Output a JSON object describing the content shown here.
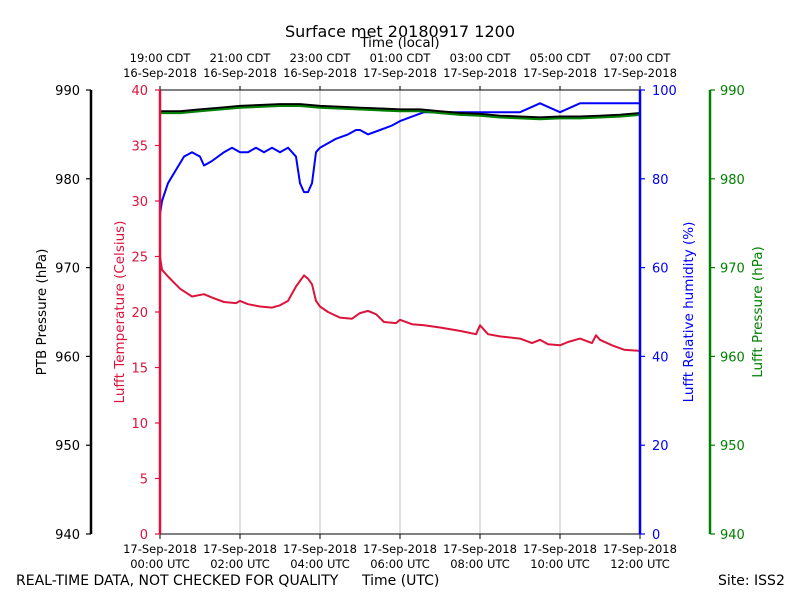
{
  "chart_data": {
    "type": "line",
    "title": "Surface met 20180917 1200",
    "top_axis_label": "Time (local)",
    "top_ticks": [
      {
        "line1": "19:00 CDT",
        "line2": "16-Sep-2018"
      },
      {
        "line1": "21:00 CDT",
        "line2": "16-Sep-2018"
      },
      {
        "line1": "23:00 CDT",
        "line2": "16-Sep-2018"
      },
      {
        "line1": "01:00 CDT",
        "line2": "17-Sep-2018"
      },
      {
        "line1": "03:00 CDT",
        "line2": "17-Sep-2018"
      },
      {
        "line1": "05:00 CDT",
        "line2": "17-Sep-2018"
      },
      {
        "line1": "07:00 CDT",
        "line2": "17-Sep-2018"
      }
    ],
    "bottom_ticks": [
      {
        "line1": "17-Sep-2018",
        "line2": "00:00 UTC"
      },
      {
        "line1": "17-Sep-2018",
        "line2": "02:00 UTC"
      },
      {
        "line1": "17-Sep-2018",
        "line2": "04:00 UTC"
      },
      {
        "line1": "17-Sep-2018",
        "line2": "06:00 UTC"
      },
      {
        "line1": "17-Sep-2018",
        "line2": "08:00 UTC"
      },
      {
        "line1": "17-Sep-2018",
        "line2": "10:00 UTC"
      },
      {
        "line1": "17-Sep-2018",
        "line2": "12:00 UTC"
      }
    ],
    "xlabel": "Time (UTC)",
    "xlim": [
      0,
      12
    ],
    "grid_x": true,
    "axes": {
      "ptb_pressure": {
        "label": "PTB Pressure (hPa)",
        "range": [
          940,
          990
        ],
        "ticks": [
          940,
          950,
          960,
          970,
          980,
          990
        ],
        "color": "#000000"
      },
      "temperature": {
        "label": "Lufft Temperature (Celsius)",
        "range": [
          0,
          40
        ],
        "ticks": [
          0,
          5,
          10,
          15,
          20,
          25,
          30,
          35,
          40
        ],
        "color": "#dc143c"
      },
      "humidity": {
        "label": "Lufft Relative humidity (%)",
        "range": [
          0,
          100
        ],
        "ticks": [
          0,
          20,
          40,
          60,
          80,
          100
        ],
        "color": "#0000ff"
      },
      "lufft_pressure": {
        "label": "Lufft Pressure (hPa)",
        "range": [
          940,
          990
        ],
        "ticks": [
          940,
          950,
          960,
          970,
          980,
          990
        ],
        "color": "#008000"
      }
    },
    "series": [
      {
        "name": "Lufft Temperature",
        "axis": "temperature",
        "color": "#dc143c",
        "x": [
          0,
          0.05,
          0.2,
          0.5,
          0.8,
          1.1,
          1.3,
          1.6,
          1.9,
          2.0,
          2.2,
          2.5,
          2.8,
          3.0,
          3.2,
          3.4,
          3.6,
          3.7,
          3.8,
          3.9,
          4.0,
          4.2,
          4.5,
          4.8,
          5.0,
          5.2,
          5.4,
          5.6,
          5.9,
          6.0,
          6.3,
          6.6,
          7.0,
          7.5,
          7.9,
          8.0,
          8.2,
          8.5,
          9.0,
          9.3,
          9.5,
          9.7,
          10.0,
          10.2,
          10.5,
          10.8,
          10.9,
          11.0,
          11.3,
          11.6,
          12.0
        ],
        "values": [
          25.0,
          23.8,
          23.2,
          22.1,
          21.4,
          21.6,
          21.3,
          20.9,
          20.8,
          21.0,
          20.7,
          20.5,
          20.4,
          20.6,
          21.0,
          22.3,
          23.3,
          23.0,
          22.5,
          21.0,
          20.5,
          20.0,
          19.5,
          19.4,
          19.9,
          20.1,
          19.8,
          19.1,
          19.0,
          19.3,
          18.9,
          18.8,
          18.6,
          18.3,
          18.0,
          18.8,
          18.0,
          17.8,
          17.6,
          17.2,
          17.5,
          17.1,
          17.0,
          17.3,
          17.6,
          17.2,
          17.9,
          17.5,
          17.0,
          16.6,
          16.5
        ]
      },
      {
        "name": "Lufft Relative humidity",
        "axis": "humidity",
        "color": "#0000ff",
        "x": [
          0,
          0.05,
          0.2,
          0.4,
          0.6,
          0.8,
          1.0,
          1.1,
          1.3,
          1.6,
          1.8,
          2.0,
          2.2,
          2.4,
          2.6,
          2.8,
          3.0,
          3.2,
          3.4,
          3.5,
          3.6,
          3.7,
          3.8,
          3.9,
          4.0,
          4.2,
          4.4,
          4.7,
          4.9,
          5.0,
          5.2,
          5.5,
          5.8,
          6.0,
          6.3,
          6.6,
          7.0,
          7.5,
          8.0,
          8.5,
          9.0,
          9.5,
          10.0,
          10.5,
          11.0,
          11.5,
          12.0
        ],
        "values": [
          72,
          75,
          79,
          82,
          85,
          86,
          85,
          83,
          84,
          86,
          87,
          86,
          86,
          87,
          86,
          87,
          86,
          87,
          85,
          79,
          77,
          77,
          79,
          86,
          87,
          88,
          89,
          90,
          91,
          91,
          90,
          91,
          92,
          93,
          94,
          95,
          95,
          95,
          95,
          95,
          95,
          97,
          95,
          97,
          97,
          97,
          97
        ]
      },
      {
        "name": "PTB Pressure",
        "axis": "ptb_pressure",
        "color": "#000000",
        "x": [
          0,
          0.5,
          1.0,
          1.5,
          2.0,
          2.5,
          3.0,
          3.5,
          4.0,
          4.5,
          5.0,
          5.5,
          6.0,
          6.5,
          7.0,
          7.5,
          8.0,
          8.5,
          9.0,
          9.5,
          10.0,
          10.5,
          11.0,
          11.5,
          12.0
        ],
        "values": [
          987.6,
          987.6,
          987.8,
          988.0,
          988.2,
          988.3,
          988.4,
          988.4,
          988.2,
          988.1,
          988.0,
          987.9,
          987.8,
          987.8,
          987.6,
          987.4,
          987.3,
          987.1,
          987.0,
          986.9,
          987.0,
          987.0,
          987.1,
          987.2,
          987.4
        ]
      },
      {
        "name": "Lufft Pressure",
        "axis": "lufft_pressure",
        "color": "#008000",
        "x": [
          0,
          0.5,
          1.0,
          1.5,
          2.0,
          2.5,
          3.0,
          3.5,
          4.0,
          4.5,
          5.0,
          5.5,
          6.0,
          6.5,
          7.0,
          7.5,
          8.0,
          8.5,
          9.0,
          9.5,
          10.0,
          10.5,
          11.0,
          11.5,
          12.0
        ],
        "values": [
          987.4,
          987.4,
          987.6,
          987.8,
          988.0,
          988.1,
          988.2,
          988.2,
          988.0,
          987.9,
          987.8,
          987.7,
          987.6,
          987.6,
          987.4,
          987.2,
          987.1,
          986.9,
          986.8,
          986.7,
          986.8,
          986.8,
          986.9,
          987.0,
          987.2
        ]
      }
    ]
  },
  "footer": {
    "left": "REAL-TIME DATA, NOT CHECKED FOR QUALITY",
    "center": "Time (UTC)",
    "right": "Site: ISS2"
  }
}
